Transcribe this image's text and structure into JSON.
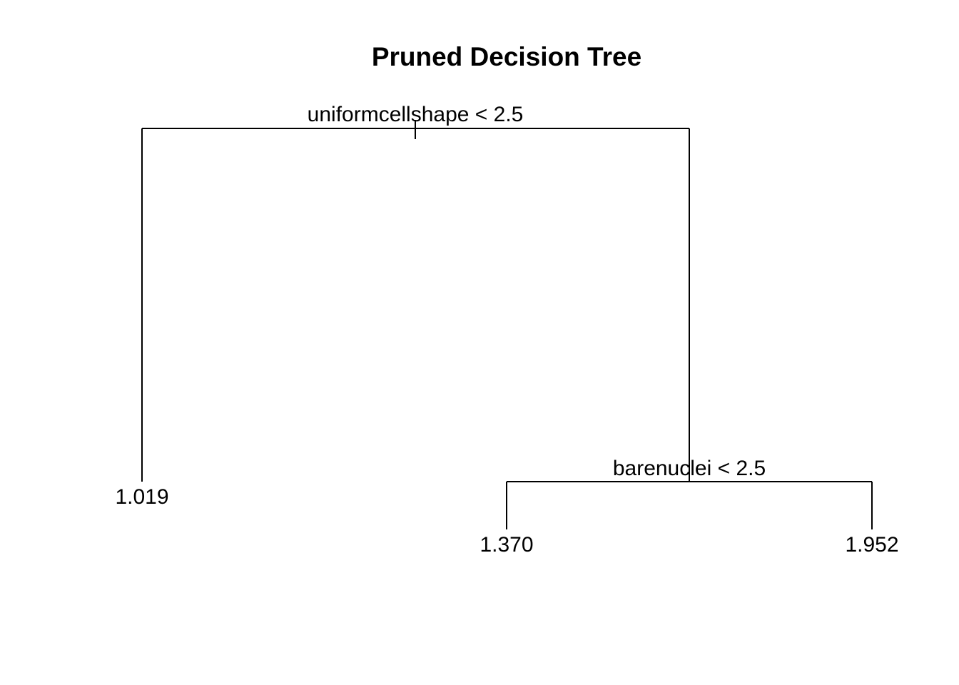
{
  "title": "Pruned Decision Tree",
  "tree": {
    "root": {
      "split": "uniformcellshape < 2.5",
      "left": {
        "leaf": "1.019"
      },
      "right": {
        "split": "barenuclei < 2.5",
        "left": {
          "leaf": "1.370"
        },
        "right": {
          "leaf": "1.952"
        }
      }
    }
  }
}
